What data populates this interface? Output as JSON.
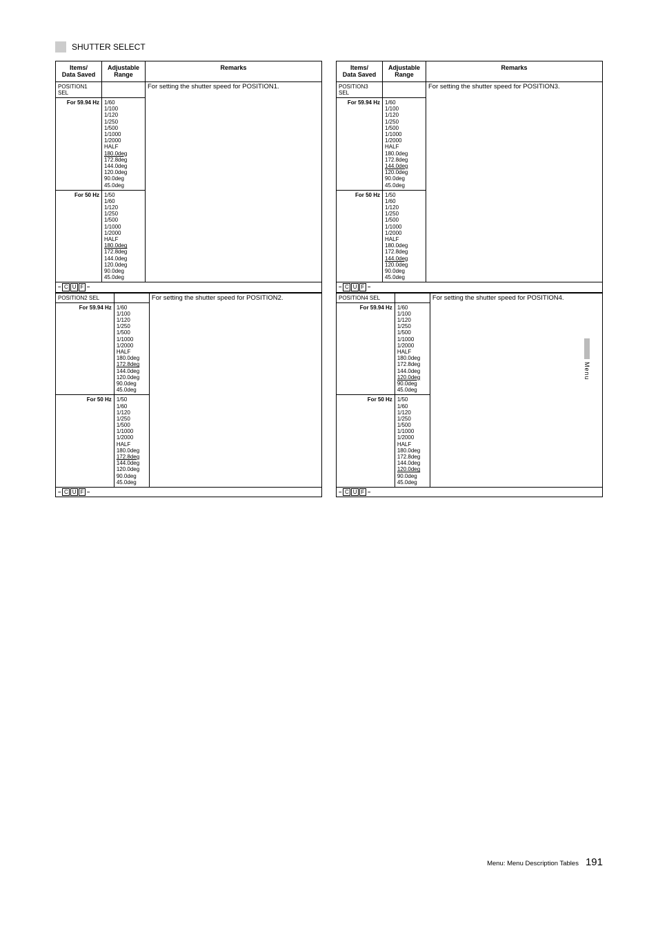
{
  "section": {
    "title": "SHUTTER SELECT"
  },
  "header": {
    "col1": "Items/\nData Saved",
    "col2": "Adjustable\nRange",
    "col3": "Remarks"
  },
  "sideTab": "Menu",
  "footer": {
    "text": "Menu: Menu Description Tables",
    "page": "191"
  },
  "cuf": [
    "C",
    "U",
    "F"
  ],
  "ranges": {
    "for5994": [
      "1/60",
      "1/100",
      "1/120",
      "1/250",
      "1/500",
      "1/1000",
      "1/2000",
      "HALF",
      "180.0deg",
      "172.8deg",
      "144.0deg",
      "120.0deg",
      "90.0deg",
      "45.0deg"
    ],
    "for50": [
      "1/50",
      "1/60",
      "1/120",
      "1/250",
      "1/500",
      "1/1000",
      "1/2000",
      "HALF",
      "180.0deg",
      "172.8deg",
      "144.0deg",
      "120.0deg",
      "90.0deg",
      "45.0deg"
    ]
  },
  "defaultsUnderlineIdx": {
    "pos1_5994": 8,
    "pos1_50": 8,
    "pos2_5994": 9,
    "pos2_50": 9,
    "pos3_5994": 10,
    "pos3_50": 10,
    "pos4_5994": 11,
    "pos4_50": 11
  },
  "labels": {
    "for5994": "For 59.94 Hz",
    "for50": "For 50 Hz"
  },
  "positions": [
    {
      "sel": "POSITION1 SEL",
      "remarks": "For setting the shutter speed for POSITION1.",
      "ul5994": 8,
      "ul50": 8
    },
    {
      "sel": "POSITION2 SEL",
      "remarks": "For setting the shutter speed for POSITION2.",
      "ul5994": 9,
      "ul50": 9
    },
    {
      "sel": "POSITION3 SEL",
      "remarks": "For setting the shutter speed for POSITION3.",
      "ul5994": 10,
      "ul50": 10
    },
    {
      "sel": "POSITION4 SEL",
      "remarks": "For setting the shutter speed for POSITION4.",
      "ul5994": 11,
      "ul50": 11
    }
  ]
}
